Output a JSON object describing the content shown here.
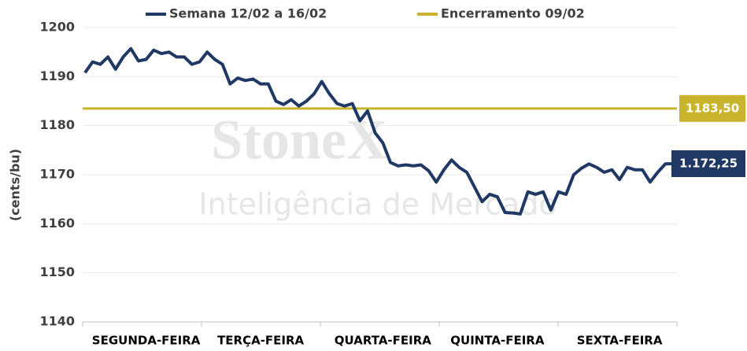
{
  "chart_data": {
    "type": "line",
    "y_label": "(cents/bu)",
    "watermark": {
      "brand": "StoneX",
      "tagline": "Inteligência de Mercado"
    },
    "categories": [
      null,
      null,
      null,
      null,
      null,
      null,
      null,
      null,
      "SEGUNDA-FEIRA",
      null,
      null,
      null,
      null,
      null,
      null,
      null,
      null,
      null,
      null,
      null,
      null,
      null,
      null,
      "TERÇA-FEIRA",
      null,
      null,
      null,
      null,
      null,
      null,
      null,
      null,
      null,
      null,
      null,
      null,
      null,
      null,
      null,
      "QUARTA-FEIRA",
      null,
      null,
      null,
      null,
      null,
      null,
      null,
      null,
      null,
      null,
      null,
      null,
      null,
      null,
      "QUINTA-FEIRA",
      null,
      null,
      null,
      null,
      null,
      null,
      null,
      null,
      null,
      null,
      null,
      null,
      null,
      null,
      null,
      "SEXTA-FEIRA",
      null,
      null,
      null,
      null,
      null,
      null,
      null
    ],
    "series": [
      {
        "name": "Semana 12/02 a 16/02",
        "color": "#1f3864",
        "values": [
          1190.8,
          1193,
          1192.5,
          1194,
          1191.5,
          1194,
          1195.7,
          1193.2,
          1193.5,
          1195.4,
          1194.7,
          1195,
          1194,
          1194,
          1192.5,
          1193,
          1195,
          1193.5,
          1192.5,
          1188.5,
          1189.7,
          1189.2,
          1189.5,
          1188.5,
          1188.5,
          1185,
          1184.3,
          1185.3,
          1184,
          1185,
          1186.5,
          1189,
          1186.5,
          1184.5,
          1184,
          1184.5,
          1181,
          1183,
          1178.5,
          1176.5,
          1172.5,
          1171.8,
          1172,
          1171.8,
          1172,
          1170.8,
          1168.5,
          1171,
          1173,
          1171.5,
          1170.5,
          1167.5,
          1164.5,
          1166,
          1165.5,
          1162.3,
          1162.2,
          1162,
          1166.5,
          1166,
          1166.5,
          1162.8,
          1166.5,
          1166,
          1170,
          1171.3,
          1172.2,
          1171.5,
          1170.5,
          1171,
          1169,
          1171.5,
          1171,
          1171,
          1168.5,
          1170.5,
          1172.2,
          1172.25
        ],
        "last_value_label": "1.172,25"
      },
      {
        "name": "Encerramento 09/02",
        "color": "#c9b42e",
        "value": 1183.5,
        "value_label": "1183,50"
      }
    ],
    "ylim": [
      1140,
      1200
    ],
    "yticks": [
      1140,
      1150,
      1160,
      1170,
      1180,
      1190,
      1200
    ],
    "grid": true
  }
}
